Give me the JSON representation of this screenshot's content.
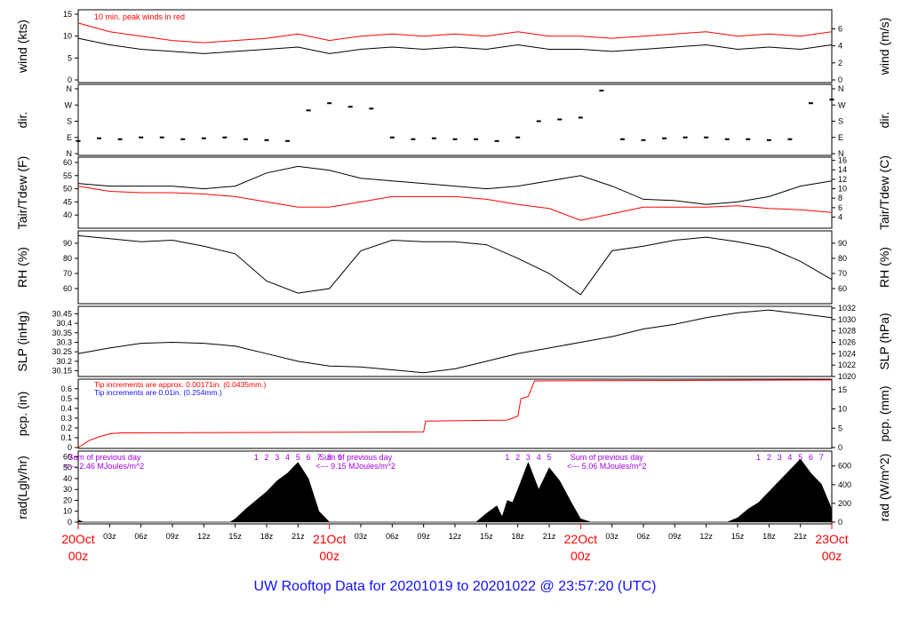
{
  "footer_title": "UW Rooftop Data for 20201019  to  20201022 @ 23:57:20  (UTC)",
  "colors": {
    "red": "#ff0000",
    "blue": "#1010ff",
    "purple": "#a000e0",
    "black": "#000000"
  },
  "x_axis": {
    "hour_ticks": [
      "03z",
      "06z",
      "09z",
      "12z",
      "15z",
      "18z",
      "21z"
    ],
    "days": [
      {
        "date": "20Oct",
        "hour": "00z"
      },
      {
        "date": "21Oct",
        "hour": "00z"
      },
      {
        "date": "22Oct",
        "hour": "00z"
      },
      {
        "date": "23Oct",
        "hour": "00z"
      }
    ]
  },
  "chart_data": [
    {
      "type": "line",
      "id": "wind",
      "ylabel": "wind (kts)",
      "ylabel_right": "wind (m/s)",
      "ylim": [
        0,
        15
      ],
      "yticks": [
        0,
        5,
        10,
        15
      ],
      "yticks_right": [
        {
          "label": "0",
          "at": 0
        },
        {
          "label": "2",
          "at": 3.89
        },
        {
          "label": "4",
          "at": 7.78
        },
        {
          "label": "6",
          "at": 11.66
        }
      ],
      "annotation": "10 min. peak winds in red",
      "x_hours": [
        0,
        3,
        6,
        9,
        12,
        15,
        18,
        21,
        24,
        27,
        30,
        33,
        36,
        39,
        42,
        45,
        48,
        51,
        54,
        57,
        60,
        63,
        66,
        69,
        72
      ],
      "series": [
        {
          "role": "mean",
          "color": "#000000",
          "values": [
            9.5,
            8,
            7,
            6.5,
            6,
            6.5,
            7,
            7.5,
            6,
            7,
            7.5,
            7,
            7.5,
            7,
            8,
            7,
            7,
            6.5,
            7,
            7.5,
            8,
            7,
            7.5,
            7,
            8
          ]
        },
        {
          "role": "peak",
          "color": "#ff0000",
          "values": [
            13,
            11,
            10,
            9,
            8.5,
            9,
            9.5,
            10.5,
            9,
            10,
            10.5,
            10,
            10.5,
            10,
            11,
            10,
            10,
            9.5,
            10,
            10.5,
            11,
            10,
            10.5,
            10,
            11
          ]
        }
      ]
    },
    {
      "type": "scatter",
      "id": "direction",
      "ylabel": "dir.",
      "ylabel_right": "dir.",
      "yticks": [
        "N",
        "E",
        "S",
        "W",
        "N"
      ],
      "x_hours": [
        0,
        2,
        4,
        6,
        8,
        10,
        12,
        14,
        16,
        18,
        20,
        22,
        24,
        26,
        28,
        30,
        32,
        34,
        36,
        38,
        40,
        42,
        44,
        46,
        48,
        50,
        52,
        54,
        56,
        58,
        60,
        62,
        64,
        66,
        68,
        70,
        72
      ],
      "values_deg": [
        70,
        85,
        80,
        90,
        90,
        80,
        85,
        90,
        80,
        75,
        70,
        240,
        280,
        260,
        250,
        90,
        80,
        85,
        80,
        80,
        70,
        90,
        180,
        190,
        200,
        350,
        80,
        75,
        85,
        90,
        90,
        80,
        80,
        75,
        80,
        280,
        300
      ]
    },
    {
      "type": "line",
      "id": "temperature",
      "ylabel": "Tair/Tdew (F)",
      "ylabel_right": "Tair/Tdew (C)",
      "ylim": [
        36,
        61
      ],
      "yticks": [
        40,
        45,
        50,
        55,
        60
      ],
      "yticks_right": [
        {
          "label": "4",
          "at": 39.2
        },
        {
          "label": "6",
          "at": 42.8
        },
        {
          "label": "8",
          "at": 46.4
        },
        {
          "label": "10",
          "at": 50
        },
        {
          "label": "12",
          "at": 53.6
        },
        {
          "label": "14",
          "at": 57.2
        },
        {
          "label": "16",
          "at": 60.8
        }
      ],
      "x_hours": [
        0,
        3,
        6,
        9,
        12,
        15,
        18,
        21,
        24,
        27,
        30,
        33,
        36,
        39,
        42,
        45,
        48,
        51,
        54,
        57,
        60,
        63,
        66,
        69,
        72
      ],
      "series": [
        {
          "name": "Tair",
          "color": "#000000",
          "values": [
            52,
            51,
            51,
            51,
            50,
            51,
            56,
            58.5,
            57,
            54,
            53,
            52,
            51,
            50,
            51,
            53,
            55,
            51,
            46,
            45.5,
            44,
            45,
            47,
            51,
            53
          ]
        },
        {
          "name": "Tdew",
          "color": "#ff0000",
          "values": [
            51,
            49,
            48.5,
            48.5,
            48,
            47,
            45,
            43,
            43,
            45,
            47,
            47,
            47,
            46,
            44,
            42.5,
            38,
            40.5,
            43,
            43,
            43,
            43.5,
            42.5,
            42,
            41
          ]
        }
      ]
    },
    {
      "type": "line",
      "id": "rh",
      "ylabel": "RH (%)",
      "ylabel_right": "RH (%)",
      "ylim": [
        50,
        97
      ],
      "yticks": [
        60,
        70,
        80,
        90
      ],
      "x_hours": [
        0,
        3,
        6,
        9,
        12,
        15,
        18,
        21,
        24,
        27,
        30,
        33,
        36,
        39,
        42,
        45,
        48,
        51,
        54,
        57,
        60,
        63,
        66,
        69,
        72
      ],
      "series": [
        {
          "color": "#000000",
          "values": [
            95,
            93,
            91,
            92,
            88,
            83,
            65,
            57,
            60,
            85,
            92,
            91,
            91,
            89,
            80,
            70,
            56,
            85,
            88,
            92,
            94,
            91,
            87,
            78,
            66
          ]
        }
      ]
    },
    {
      "type": "line",
      "id": "pressure",
      "ylabel": "SLP (inHg)",
      "ylabel_right": "SLP (hPa)",
      "ylim": [
        30.12,
        30.48
      ],
      "yticks": [
        30.15,
        30.2,
        30.25,
        30.3,
        30.35,
        30.4,
        30.45
      ],
      "yticks_right": [
        {
          "label": "1020",
          "at": 30.12
        },
        {
          "label": "1022",
          "at": 30.18
        },
        {
          "label": "1024",
          "at": 30.24
        },
        {
          "label": "1026",
          "at": 30.3
        },
        {
          "label": "1028",
          "at": 30.36
        },
        {
          "label": "1030",
          "at": 30.42
        },
        {
          "label": "1032",
          "at": 30.48
        }
      ],
      "x_hours": [
        0,
        3,
        6,
        9,
        12,
        15,
        18,
        21,
        24,
        27,
        30,
        33,
        36,
        39,
        42,
        45,
        48,
        51,
        54,
        57,
        60,
        63,
        66,
        69,
        72
      ],
      "series": [
        {
          "color": "#000000",
          "values": [
            30.24,
            30.27,
            30.295,
            30.3,
            30.295,
            30.28,
            30.24,
            30.2,
            30.175,
            30.17,
            30.155,
            30.14,
            30.16,
            30.2,
            30.24,
            30.27,
            30.3,
            30.33,
            30.37,
            30.395,
            30.43,
            30.455,
            30.47,
            30.45,
            30.43
          ]
        }
      ]
    },
    {
      "type": "line",
      "id": "precipitation",
      "ylabel": "pcp. (in)",
      "ylabel_right": "pcp. (mm)",
      "ylim": [
        0,
        0.68
      ],
      "yticks": [
        0,
        0.1,
        0.2,
        0.3,
        0.4,
        0.5,
        0.6
      ],
      "yticks_right": [
        {
          "label": "0",
          "at": 0
        },
        {
          "label": "5",
          "at": 0.197
        },
        {
          "label": "10",
          "at": 0.394
        },
        {
          "label": "15",
          "at": 0.591
        }
      ],
      "annotations": [
        {
          "text": "Tip increments are approx. 0.00171in. (0.0435mm.)",
          "color": "#ff0000"
        },
        {
          "text": "Tip increments are 0.01in. (0.254mm.)",
          "color": "#1010ff"
        }
      ],
      "x_hours": [
        0,
        1,
        2,
        3,
        4,
        33,
        33.2,
        41,
        42,
        42.3,
        43,
        43.6,
        72
      ],
      "series": [
        {
          "color": "#ff0000",
          "values": [
            0,
            0.07,
            0.11,
            0.14,
            0.15,
            0.16,
            0.27,
            0.28,
            0.32,
            0.5,
            0.52,
            0.68,
            0.69
          ]
        }
      ]
    },
    {
      "type": "area",
      "id": "radiation",
      "ylabel": "rad(Lgly/hr)",
      "ylabel_right": "rad (W/m^2)",
      "ylim": [
        0,
        62
      ],
      "yticks": [
        0,
        10,
        20,
        30,
        40,
        50,
        60
      ],
      "yticks_right": [
        {
          "label": "0",
          "at": 0
        },
        {
          "label": "200",
          "at": 17.2
        },
        {
          "label": "400",
          "at": 34.4
        },
        {
          "label": "600",
          "at": 51.6
        }
      ],
      "day_summaries": [
        {
          "title": "Sum of previous day",
          "text": "<--- 2.46 MJoules/m^2",
          "hour_marks": [
            "1",
            "2",
            "3",
            "4",
            "5",
            "6",
            "7",
            "8",
            "9"
          ]
        },
        {
          "title": "Sum of previous day",
          "text": "<--- 9.15 MJoules/m^2",
          "hour_marks": [
            "1",
            "2",
            "3",
            "4",
            "5"
          ]
        },
        {
          "title": "Sum of previous day",
          "text": "<--- 5.06 MJoules/m^2",
          "hour_marks": [
            "1",
            "2",
            "3",
            "4",
            "5",
            "6",
            "7"
          ]
        }
      ],
      "x_hours": [
        0,
        0.5,
        14.5,
        15,
        16,
        17,
        18,
        19,
        20,
        21,
        22,
        23,
        24,
        24.5,
        38,
        39,
        40,
        40.5,
        41,
        41.5,
        42,
        43,
        44,
        45,
        46,
        47,
        48,
        49,
        62,
        63,
        64,
        65,
        66,
        67,
        68,
        69,
        70,
        71,
        72
      ],
      "series": [
        {
          "color": "#000000",
          "values": [
            2,
            0,
            0,
            3,
            12,
            20,
            28,
            38,
            45,
            55,
            40,
            10,
            0,
            0,
            0,
            8,
            15,
            5,
            20,
            18,
            30,
            55,
            30,
            50,
            38,
            20,
            3,
            0,
            0,
            4,
            12,
            18,
            28,
            38,
            48,
            58,
            45,
            35,
            12
          ]
        }
      ]
    }
  ]
}
